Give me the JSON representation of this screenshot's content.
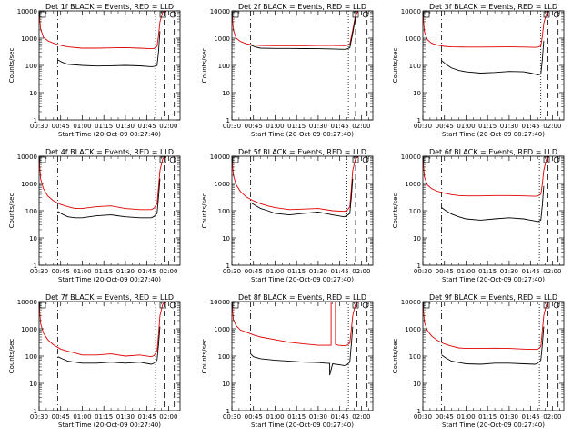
{
  "figure": {
    "xtick_labels": [
      "00:30",
      "00:45",
      "01:00",
      "01:15",
      "01:30",
      "01:45",
      "02:00"
    ],
    "ytick_labels": [
      "1",
      "10",
      "100",
      "1000",
      "10000"
    ],
    "xlabel": "Start Time (20-Oct-09 00:27:40)",
    "ylabel": "Counts/sec",
    "colors": {
      "events": "#000000",
      "lld": "#e00000",
      "axes": "#000000"
    }
  },
  "chart_data": [
    {
      "type": "line",
      "title": "Det 1f BLACK = Events, RED = LLD",
      "xlabel": "Start Time (20-Oct-09 00:27:40)",
      "ylabel": "Counts/sec",
      "x_unit": "minutes after 00:00",
      "xlim": [
        30,
        128
      ],
      "ylim": [
        1,
        10000
      ],
      "yscale": "log",
      "series": [
        {
          "name": "Events",
          "color": "#000000",
          "x": [
            43,
            46,
            50,
            60,
            70,
            80,
            90,
            100,
            108,
            110,
            112,
            113,
            114
          ],
          "y": [
            160,
            130,
            110,
            100,
            95,
            97,
            100,
            96,
            90,
            92,
            100,
            300,
            1800
          ]
        },
        {
          "name": "LLD",
          "color": "#e00000",
          "x": [
            30,
            31,
            33,
            36,
            40,
            45,
            50,
            60,
            70,
            80,
            90,
            100,
            108,
            110,
            112,
            113,
            114,
            116,
            118
          ],
          "y": [
            10000,
            2200,
            1100,
            800,
            650,
            540,
            480,
            430,
            430,
            440,
            450,
            430,
            410,
            420,
            500,
            1200,
            4000,
            9000,
            10000
          ]
        }
      ],
      "vlines": [
        {
          "x": 43,
          "style": "dashdot"
        },
        {
          "x": 111,
          "style": "dotted"
        },
        {
          "x": 117,
          "style": "dashed"
        },
        {
          "x": 124,
          "style": "dashed"
        }
      ]
    },
    {
      "type": "line",
      "title": "Det 2f BLACK = Events, RED = LLD",
      "xlabel": "Start Time (20-Oct-09 00:27:40)",
      "ylabel": "Counts/sec",
      "x_unit": "minutes after 00:00",
      "xlim": [
        30,
        128
      ],
      "ylim": [
        1,
        10000
      ],
      "yscale": "log",
      "series": [
        {
          "name": "Events",
          "color": "#000000",
          "x": [
            43,
            46,
            50,
            60,
            70,
            80,
            90,
            100,
            108,
            110,
            112,
            114,
            116
          ],
          "y": [
            560,
            480,
            430,
            420,
            420,
            415,
            410,
            400,
            390,
            400,
            450,
            1500,
            6000
          ]
        },
        {
          "name": "LLD",
          "color": "#e00000",
          "x": [
            30,
            31,
            33,
            36,
            40,
            45,
            50,
            60,
            70,
            80,
            90,
            100,
            108,
            110,
            112,
            114,
            116,
            118
          ],
          "y": [
            10000,
            2000,
            1000,
            750,
            620,
            560,
            540,
            530,
            530,
            530,
            535,
            540,
            530,
            540,
            600,
            2000,
            7000,
            10000
          ]
        }
      ],
      "vlines": [
        {
          "x": 43,
          "style": "dashdot"
        },
        {
          "x": 111,
          "style": "dotted"
        },
        {
          "x": 116,
          "style": "dashed"
        },
        {
          "x": 124,
          "style": "dashed"
        }
      ]
    },
    {
      "type": "line",
      "title": "Det 3f BLACK = Events, RED = LLD",
      "xlabel": "Start Time (20-Oct-09 00:27:40)",
      "ylabel": "Counts/sec",
      "x_unit": "minutes after 00:00",
      "xlim": [
        30,
        128
      ],
      "ylim": [
        1,
        10000
      ],
      "yscale": "log",
      "series": [
        {
          "name": "Events",
          "color": "#000000",
          "x": [
            43,
            46,
            50,
            55,
            60,
            70,
            80,
            90,
            100,
            105,
            110,
            112,
            113,
            114
          ],
          "y": [
            150,
            110,
            80,
            65,
            58,
            52,
            55,
            60,
            58,
            52,
            45,
            48,
            150,
            800
          ]
        },
        {
          "name": "LLD",
          "color": "#e00000",
          "x": [
            30,
            31,
            33,
            36,
            40,
            45,
            50,
            60,
            70,
            80,
            90,
            100,
            108,
            110,
            112,
            113,
            114,
            116,
            118
          ],
          "y": [
            10000,
            1800,
            900,
            650,
            560,
            500,
            480,
            470,
            470,
            475,
            480,
            470,
            460,
            470,
            520,
            1100,
            3500,
            8000,
            10000
          ]
        }
      ],
      "vlines": [
        {
          "x": 43,
          "style": "dashdot"
        },
        {
          "x": 112,
          "style": "dotted"
        },
        {
          "x": 117,
          "style": "dashed"
        },
        {
          "x": 124,
          "style": "dashed"
        }
      ]
    },
    {
      "type": "line",
      "title": "Det 4f BLACK = Events, RED = LLD",
      "xlabel": "Start Time (20-Oct-09 00:27:40)",
      "ylabel": "Counts/sec",
      "x_unit": "minutes after 00:00",
      "xlim": [
        30,
        128
      ],
      "ylim": [
        1,
        10000
      ],
      "yscale": "log",
      "series": [
        {
          "name": "Events",
          "color": "#000000",
          "x": [
            43,
            46,
            50,
            55,
            60,
            70,
            80,
            90,
            100,
            108,
            110,
            112,
            113,
            114
          ],
          "y": [
            95,
            75,
            60,
            55,
            55,
            65,
            70,
            60,
            55,
            55,
            62,
            80,
            300,
            1500
          ]
        },
        {
          "name": "LLD",
          "color": "#e00000",
          "x": [
            30,
            31,
            33,
            36,
            40,
            45,
            50,
            55,
            60,
            70,
            80,
            90,
            100,
            108,
            110,
            112,
            113,
            114,
            116,
            118
          ],
          "y": [
            10000,
            1500,
            650,
            350,
            230,
            170,
            140,
            120,
            120,
            140,
            150,
            120,
            110,
            110,
            125,
            180,
            700,
            3000,
            8000,
            10000
          ]
        }
      ],
      "vlines": [
        {
          "x": 43,
          "style": "dashdot"
        },
        {
          "x": 111,
          "style": "dotted"
        },
        {
          "x": 117,
          "style": "dashed"
        },
        {
          "x": 124,
          "style": "dashed"
        }
      ]
    },
    {
      "type": "line",
      "title": "Det 5f BLACK = Events, RED = LLD",
      "xlabel": "Start Time (20-Oct-09 00:27:40)",
      "ylabel": "Counts/sec",
      "x_unit": "minutes after 00:00",
      "xlim": [
        30,
        128
      ],
      "ylim": [
        1,
        10000
      ],
      "yscale": "log",
      "series": [
        {
          "name": "Events",
          "color": "#000000",
          "x": [
            43,
            46,
            50,
            55,
            60,
            70,
            80,
            90,
            100,
            108,
            110,
            112,
            113,
            114
          ],
          "y": [
            200,
            160,
            120,
            100,
            80,
            70,
            80,
            90,
            70,
            60,
            65,
            80,
            300,
            1500
          ]
        },
        {
          "name": "LLD",
          "color": "#e00000",
          "x": [
            30,
            31,
            33,
            36,
            40,
            45,
            50,
            55,
            60,
            70,
            80,
            90,
            100,
            108,
            110,
            112,
            113,
            114,
            116,
            118
          ],
          "y": [
            10000,
            2000,
            900,
            500,
            320,
            230,
            180,
            150,
            130,
            110,
            115,
            120,
            100,
            95,
            100,
            140,
            600,
            3000,
            8000,
            10000
          ]
        }
      ],
      "vlines": [
        {
          "x": 43,
          "style": "dashdot"
        },
        {
          "x": 110,
          "style": "dotted"
        },
        {
          "x": 116,
          "style": "dashed"
        },
        {
          "x": 124,
          "style": "dashed"
        }
      ]
    },
    {
      "type": "line",
      "title": "Det 6f BLACK = Events, RED = LLD",
      "xlabel": "Start Time (20-Oct-09 00:27:40)",
      "ylabel": "Counts/sec",
      "x_unit": "minutes after 00:00",
      "xlim": [
        30,
        128
      ],
      "ylim": [
        1,
        10000
      ],
      "yscale": "log",
      "series": [
        {
          "name": "Events",
          "color": "#000000",
          "x": [
            43,
            46,
            50,
            55,
            60,
            70,
            80,
            90,
            100,
            105,
            110,
            112,
            113,
            114
          ],
          "y": [
            130,
            100,
            75,
            60,
            50,
            45,
            50,
            55,
            50,
            45,
            40,
            45,
            150,
            800
          ]
        },
        {
          "name": "LLD",
          "color": "#e00000",
          "x": [
            30,
            31,
            33,
            36,
            40,
            45,
            50,
            55,
            60,
            70,
            80,
            90,
            100,
            108,
            110,
            112,
            113,
            114,
            116,
            118
          ],
          "y": [
            10000,
            1800,
            900,
            650,
            520,
            440,
            390,
            360,
            350,
            350,
            360,
            360,
            350,
            340,
            350,
            400,
            900,
            3000,
            8000,
            10000
          ]
        }
      ],
      "vlines": [
        {
          "x": 43,
          "style": "dashdot"
        },
        {
          "x": 111,
          "style": "dotted"
        },
        {
          "x": 117,
          "style": "dashed"
        },
        {
          "x": 124,
          "style": "dashed"
        }
      ]
    },
    {
      "type": "line",
      "title": "Det 7f BLACK = Events, RED = LLD",
      "xlabel": "Start Time (20-Oct-09 00:27:40)",
      "ylabel": "Counts/sec",
      "x_unit": "minutes after 00:00",
      "xlim": [
        30,
        128
      ],
      "ylim": [
        1,
        10000
      ],
      "yscale": "log",
      "series": [
        {
          "name": "Events",
          "color": "#000000",
          "x": [
            43,
            46,
            50,
            55,
            60,
            70,
            80,
            90,
            100,
            108,
            110,
            112,
            113,
            114
          ],
          "y": [
            95,
            80,
            65,
            60,
            55,
            55,
            60,
            55,
            60,
            50,
            55,
            70,
            250,
            1200
          ]
        },
        {
          "name": "LLD",
          "color": "#e00000",
          "x": [
            30,
            31,
            33,
            36,
            40,
            45,
            50,
            55,
            60,
            70,
            80,
            90,
            100,
            108,
            110,
            112,
            113,
            114,
            116,
            118
          ],
          "y": [
            10000,
            1600,
            700,
            400,
            260,
            180,
            150,
            130,
            110,
            110,
            120,
            100,
            110,
            95,
            105,
            150,
            600,
            3000,
            8000,
            10000
          ]
        }
      ],
      "vlines": [
        {
          "x": 43,
          "style": "dashdot"
        },
        {
          "x": 111,
          "style": "dotted"
        },
        {
          "x": 117,
          "style": "dashed"
        },
        {
          "x": 124,
          "style": "dashed"
        }
      ]
    },
    {
      "type": "line",
      "title": "Det 8f BLACK = Events, RED = LLD",
      "xlabel": "Start Time (20-Oct-09 00:27:40)",
      "ylabel": "Counts/sec",
      "x_unit": "minutes after 00:00",
      "xlim": [
        30,
        128
      ],
      "ylim": [
        1,
        10000
      ],
      "yscale": "log",
      "series": [
        {
          "name": "Events",
          "color": "#000000",
          "x": [
            43,
            45,
            50,
            60,
            70,
            80,
            90,
            95,
            98,
            98,
            100,
            105,
            108,
            110,
            112,
            113,
            114
          ],
          "y": [
            120,
            95,
            80,
            70,
            65,
            60,
            58,
            55,
            54,
            20,
            52,
            48,
            45,
            48,
            60,
            250,
            1200
          ]
        },
        {
          "name": "LLD",
          "color": "#e00000",
          "x": [
            30,
            31,
            33,
            36,
            40,
            45,
            50,
            60,
            70,
            80,
            90,
            95,
            98,
            99,
            99,
            100,
            102,
            102,
            104,
            108,
            110,
            112,
            113,
            114,
            116,
            118
          ],
          "y": [
            10000,
            2200,
            1300,
            900,
            750,
            600,
            500,
            400,
            320,
            280,
            250,
            250,
            250,
            250,
            10000,
            10000,
            10000,
            270,
            250,
            240,
            250,
            300,
            900,
            3000,
            8000,
            10000
          ]
        }
      ],
      "vlines": [
        {
          "x": 43,
          "style": "dashdot"
        },
        {
          "x": 111,
          "style": "dotted"
        },
        {
          "x": 117,
          "style": "dashed"
        },
        {
          "x": 124,
          "style": "dashed"
        }
      ]
    },
    {
      "type": "line",
      "title": "Det 9f BLACK = Events, RED = LLD",
      "xlabel": "Start Time (20-Oct-09 00:27:40)",
      "ylabel": "Counts/sec",
      "x_unit": "minutes after 00:00",
      "xlim": [
        30,
        128
      ],
      "ylim": [
        1,
        10000
      ],
      "yscale": "log",
      "series": [
        {
          "name": "Events",
          "color": "#000000",
          "x": [
            43,
            46,
            50,
            55,
            60,
            70,
            80,
            90,
            100,
            108,
            110,
            112,
            113,
            114
          ],
          "y": [
            110,
            85,
            65,
            58,
            52,
            50,
            55,
            55,
            52,
            50,
            55,
            70,
            250,
            1200
          ]
        },
        {
          "name": "LLD",
          "color": "#e00000",
          "x": [
            30,
            31,
            33,
            36,
            40,
            45,
            50,
            55,
            60,
            70,
            80,
            90,
            100,
            108,
            110,
            112,
            113,
            114,
            116,
            118
          ],
          "y": [
            10000,
            1800,
            900,
            550,
            380,
            280,
            230,
            200,
            190,
            190,
            195,
            190,
            180,
            175,
            180,
            220,
            800,
            3000,
            8000,
            10000
          ]
        }
      ],
      "vlines": [
        {
          "x": 43,
          "style": "dashdot"
        },
        {
          "x": 111,
          "style": "dotted"
        },
        {
          "x": 117,
          "style": "dashed"
        },
        {
          "x": 124,
          "style": "dashed"
        }
      ]
    }
  ]
}
